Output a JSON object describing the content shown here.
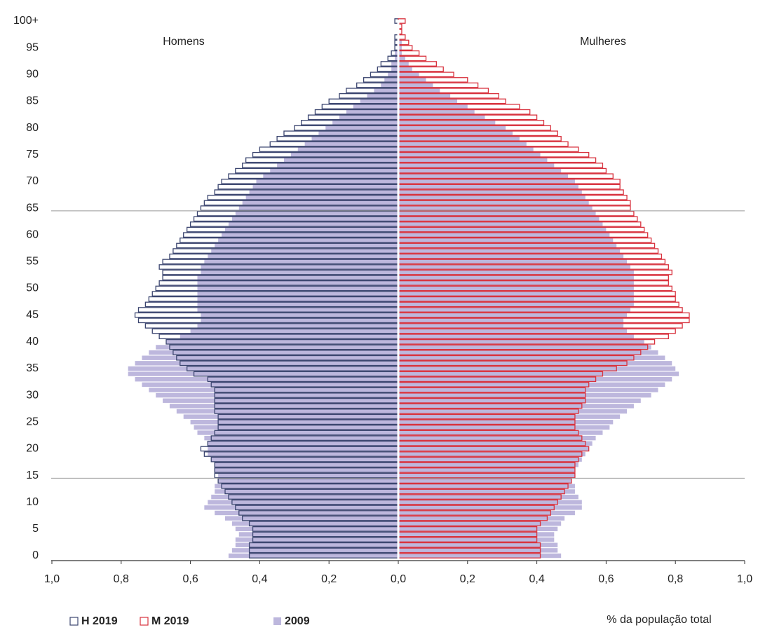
{
  "chart_data": {
    "type": "pyramid",
    "x_axis_label": "% da população total",
    "categories": [
      "0",
      null,
      null,
      null,
      null,
      "5",
      null,
      null,
      null,
      null,
      "10",
      null,
      null,
      null,
      null,
      "15",
      null,
      null,
      null,
      null,
      "20",
      null,
      null,
      null,
      null,
      "25",
      null,
      null,
      null,
      null,
      "30",
      null,
      null,
      null,
      null,
      "35",
      null,
      null,
      null,
      null,
      "40",
      null,
      null,
      null,
      null,
      "45",
      null,
      null,
      null,
      null,
      "50",
      null,
      null,
      null,
      null,
      "55",
      null,
      null,
      null,
      null,
      "60",
      null,
      null,
      null,
      null,
      "65",
      null,
      null,
      null,
      null,
      "70",
      null,
      null,
      null,
      null,
      "75",
      null,
      null,
      null,
      null,
      "80",
      null,
      null,
      null,
      null,
      "85",
      null,
      null,
      null,
      null,
      "90",
      null,
      null,
      null,
      null,
      "95",
      null,
      null,
      null,
      null,
      "100+"
    ],
    "xlim": [
      0,
      1
    ],
    "xticks": [
      {
        "value": 0,
        "label": "0,0"
      },
      {
        "value": 0.2,
        "label": "0,2"
      },
      {
        "value": 0.4,
        "label": "0,4"
      },
      {
        "value": 0.6,
        "label": "0,6"
      },
      {
        "value": 0.8,
        "label": "0,8"
      },
      {
        "value": 1,
        "label": "1,0"
      }
    ],
    "panels": [
      {
        "title": "Homens",
        "series": [
          {
            "name": "H 2019",
            "color": "#3c4670",
            "style": "outline",
            "values": [
              0.43,
              0.43,
              0.43,
              0.42,
              0.42,
              0.42,
              0.43,
              0.45,
              0.46,
              0.47,
              0.48,
              0.49,
              0.5,
              0.51,
              0.52,
              0.53,
              0.53,
              0.53,
              0.54,
              0.56,
              0.57,
              0.55,
              0.54,
              0.53,
              0.52,
              0.52,
              0.52,
              0.53,
              0.53,
              0.53,
              0.53,
              0.53,
              0.54,
              0.55,
              0.59,
              0.61,
              0.63,
              0.64,
              0.65,
              0.66,
              0.67,
              0.69,
              0.71,
              0.73,
              0.75,
              0.76,
              0.75,
              0.73,
              0.72,
              0.71,
              0.7,
              0.69,
              0.68,
              0.68,
              0.69,
              0.68,
              0.66,
              0.65,
              0.64,
              0.63,
              0.62,
              0.61,
              0.6,
              0.59,
              0.58,
              0.57,
              0.56,
              0.55,
              0.53,
              0.52,
              0.51,
              0.49,
              0.47,
              0.45,
              0.44,
              0.42,
              0.4,
              0.37,
              0.35,
              0.33,
              0.3,
              0.28,
              0.26,
              0.24,
              0.22,
              0.2,
              0.17,
              0.15,
              0.12,
              0.1,
              0.08,
              0.06,
              0.05,
              0.03,
              0.02,
              0.01,
              0.01,
              0.01,
              0,
              0,
              0.01
            ]
          },
          {
            "name": "2009",
            "color": "#bdb7dd",
            "style": "filled",
            "values": [
              0.49,
              0.48,
              0.47,
              0.47,
              0.46,
              0.47,
              0.48,
              0.5,
              0.53,
              0.56,
              0.55,
              0.54,
              0.53,
              0.53,
              0.52,
              0.52,
              0.53,
              0.53,
              0.54,
              0.55,
              0.55,
              0.55,
              0.56,
              0.58,
              0.59,
              0.6,
              0.62,
              0.64,
              0.66,
              0.68,
              0.7,
              0.72,
              0.74,
              0.76,
              0.78,
              0.78,
              0.76,
              0.74,
              0.72,
              0.7,
              0.67,
              0.63,
              0.6,
              0.58,
              0.57,
              0.57,
              0.58,
              0.58,
              0.58,
              0.58,
              0.58,
              0.58,
              0.58,
              0.57,
              0.57,
              0.56,
              0.55,
              0.54,
              0.53,
              0.52,
              0.51,
              0.5,
              0.49,
              0.48,
              0.47,
              0.46,
              0.45,
              0.44,
              0.43,
              0.42,
              0.41,
              0.39,
              0.37,
              0.35,
              0.33,
              0.31,
              0.29,
              0.27,
              0.25,
              0.23,
              0.21,
              0.19,
              0.17,
              0.15,
              0.13,
              0.11,
              0.09,
              0.07,
              0.05,
              0.04,
              0.03,
              0.02,
              0.02,
              0.01,
              0.01,
              0,
              0,
              0,
              0,
              0,
              0
            ]
          }
        ]
      },
      {
        "title": "Mulheres",
        "series": [
          {
            "name": "M 2019",
            "color": "#d8323e",
            "style": "outline",
            "values": [
              0.41,
              0.41,
              0.41,
              0.4,
              0.4,
              0.4,
              0.41,
              0.43,
              0.44,
              0.45,
              0.46,
              0.47,
              0.48,
              0.49,
              0.5,
              0.51,
              0.51,
              0.51,
              0.52,
              0.53,
              0.55,
              0.54,
              0.53,
              0.52,
              0.51,
              0.51,
              0.51,
              0.52,
              0.53,
              0.54,
              0.54,
              0.54,
              0.55,
              0.57,
              0.59,
              0.63,
              0.66,
              0.68,
              0.7,
              0.72,
              0.74,
              0.78,
              0.8,
              0.82,
              0.84,
              0.84,
              0.82,
              0.81,
              0.8,
              0.8,
              0.79,
              0.78,
              0.78,
              0.79,
              0.78,
              0.77,
              0.76,
              0.75,
              0.74,
              0.73,
              0.72,
              0.71,
              0.7,
              0.69,
              0.68,
              0.67,
              0.67,
              0.66,
              0.65,
              0.64,
              0.64,
              0.62,
              0.6,
              0.59,
              0.57,
              0.55,
              0.52,
              0.49,
              0.47,
              0.46,
              0.44,
              0.42,
              0.4,
              0.38,
              0.35,
              0.31,
              0.29,
              0.26,
              0.23,
              0.2,
              0.16,
              0.13,
              0.11,
              0.08,
              0.06,
              0.04,
              0.03,
              0.02,
              0.01,
              0.01,
              0.02
            ]
          },
          {
            "name": "2009",
            "color": "#bdb7dd",
            "style": "filled",
            "values": [
              0.47,
              0.46,
              0.46,
              0.45,
              0.45,
              0.46,
              0.47,
              0.48,
              0.51,
              0.53,
              0.53,
              0.52,
              0.51,
              0.51,
              0.5,
              0.51,
              0.51,
              0.52,
              0.53,
              0.54,
              0.55,
              0.56,
              0.57,
              0.59,
              0.61,
              0.62,
              0.64,
              0.66,
              0.68,
              0.7,
              0.73,
              0.75,
              0.77,
              0.79,
              0.81,
              0.8,
              0.79,
              0.77,
              0.75,
              0.73,
              0.71,
              0.68,
              0.66,
              0.65,
              0.65,
              0.66,
              0.67,
              0.68,
              0.68,
              0.68,
              0.68,
              0.68,
              0.68,
              0.68,
              0.67,
              0.66,
              0.65,
              0.64,
              0.63,
              0.62,
              0.61,
              0.6,
              0.59,
              0.58,
              0.57,
              0.56,
              0.55,
              0.54,
              0.53,
              0.52,
              0.51,
              0.49,
              0.47,
              0.45,
              0.43,
              0.41,
              0.39,
              0.37,
              0.35,
              0.33,
              0.31,
              0.28,
              0.25,
              0.22,
              0.2,
              0.17,
              0.15,
              0.12,
              0.1,
              0.08,
              0.06,
              0.04,
              0.03,
              0.02,
              0.01,
              0.01,
              0.01,
              0,
              0,
              0,
              0
            ]
          }
        ]
      }
    ]
  }
}
